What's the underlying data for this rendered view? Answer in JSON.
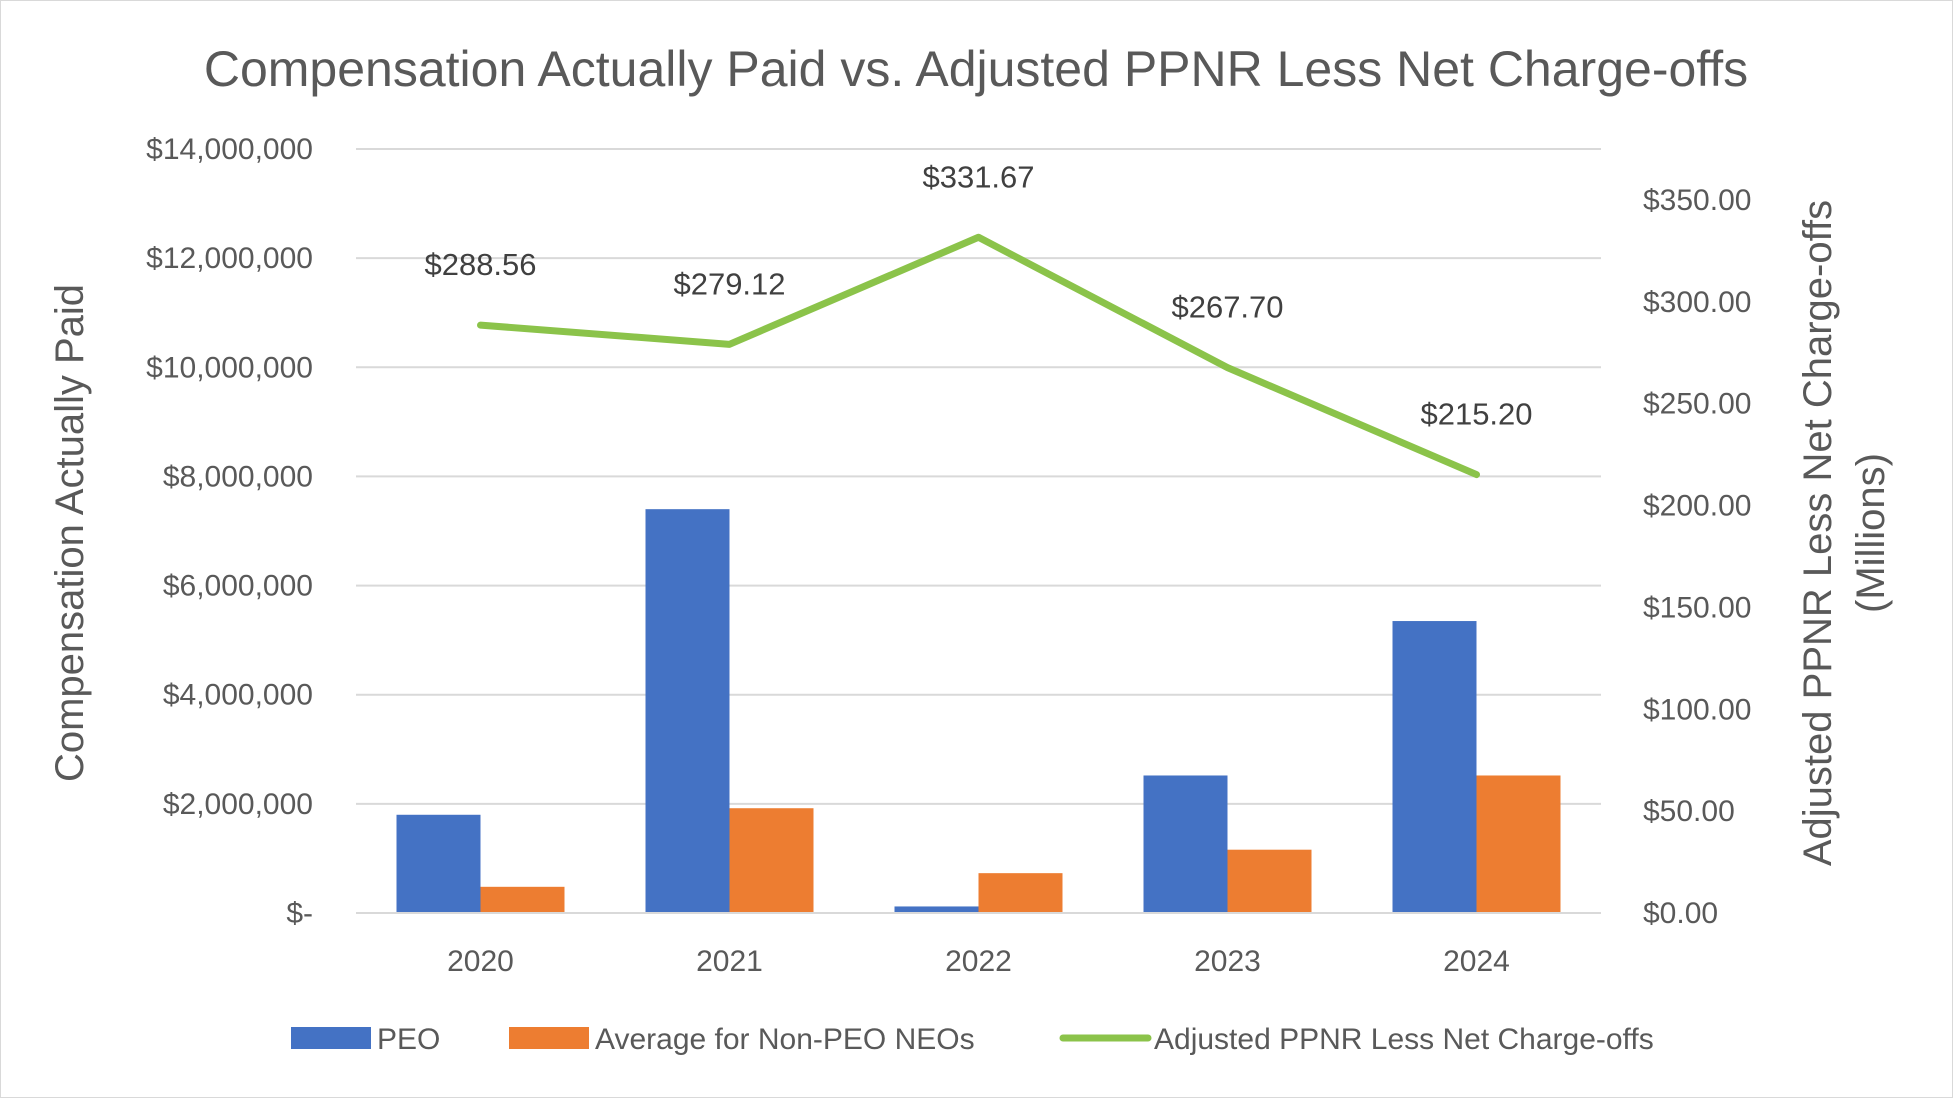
{
  "chart_data": {
    "type": "bar",
    "title": "Compensation Actually Paid vs. Adjusted PPNR Less Net Charge-offs",
    "categories": [
      "2020",
      "2021",
      "2022",
      "2023",
      "2024"
    ],
    "series": [
      {
        "name": "PEO",
        "type": "bar",
        "axis": "left",
        "color": "#4472C4",
        "values": [
          1800000,
          7400000,
          120000,
          2520000,
          5350000
        ]
      },
      {
        "name": "Average for Non-PEO NEOs",
        "type": "bar",
        "axis": "left",
        "color": "#ED7D31",
        "values": [
          480000,
          1920000,
          730000,
          1160000,
          2520000
        ]
      },
      {
        "name": "Adjusted PPNR Less Net Charge-offs",
        "type": "line",
        "axis": "right",
        "color": "#8BC34A",
        "values": [
          288.56,
          279.12,
          331.67,
          267.7,
          215.2
        ],
        "labels": [
          "$288.56",
          "$279.12",
          "$331.67",
          "$267.70",
          "$215.20"
        ]
      }
    ],
    "y_left": {
      "label": "Compensation Actually Paid",
      "ylim": [
        0,
        14000000
      ],
      "ticks": [
        0,
        2000000,
        4000000,
        6000000,
        8000000,
        10000000,
        12000000,
        14000000
      ],
      "tick_labels": [
        "$-",
        "$2,000,000",
        "$4,000,000",
        "$6,000,000",
        "$8,000,000",
        "$10,000,000",
        "$12,000,000",
        "$14,000,000"
      ]
    },
    "y_right": {
      "label_line1": "Adjusted PPNR Less Net Charge-offs",
      "label_line2": "(Millions)",
      "ylim": [
        0,
        375
      ],
      "ticks": [
        0,
        50,
        100,
        150,
        200,
        250,
        300,
        350
      ],
      "tick_labels": [
        "$0.00",
        "$50.00",
        "$100.00",
        "$150.00",
        "$200.00",
        "$250.00",
        "$300.00",
        "$350.00"
      ]
    },
    "legend": {
      "position": "bottom",
      "items": [
        "PEO",
        "Average for Non-PEO NEOs",
        "Adjusted PPNR Less Net Charge-offs"
      ]
    },
    "grid": true
  }
}
